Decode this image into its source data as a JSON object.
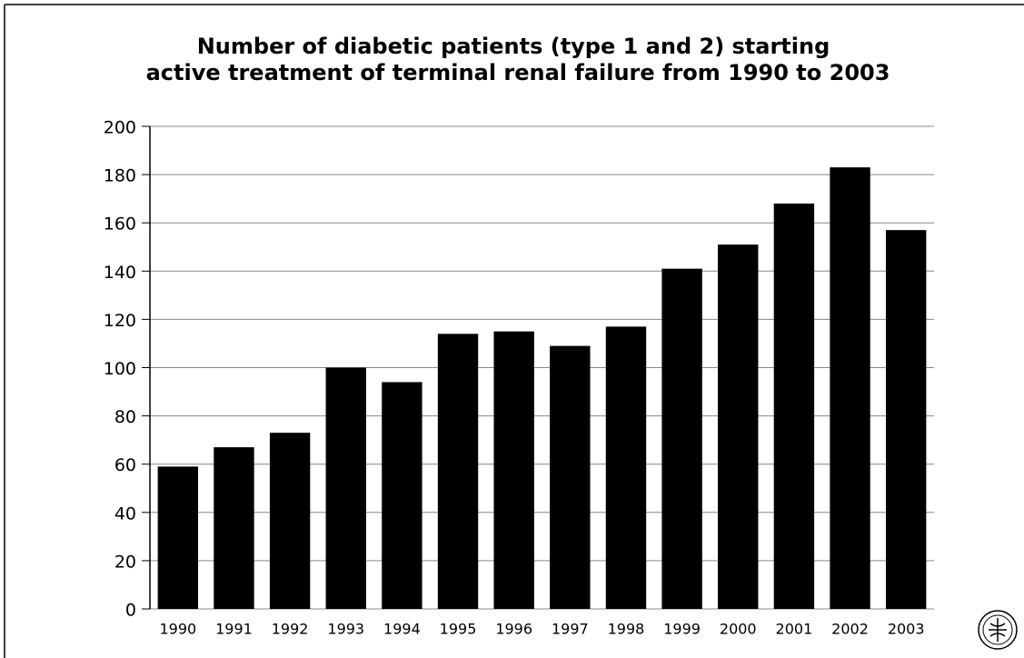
{
  "chart_data": {
    "type": "bar",
    "title": [
      "Number of diabetic patients (type 1 and 2) starting",
      "active treatment of terminal renal failure from 1990 to 2003"
    ],
    "categories": [
      "1990",
      "1991",
      "1992",
      "1993",
      "1994",
      "1995",
      "1996",
      "1997",
      "1998",
      "1999",
      "2000",
      "2001",
      "2002",
      "2003"
    ],
    "values": [
      59,
      67,
      73,
      100,
      94,
      114,
      115,
      109,
      117,
      141,
      151,
      168,
      183,
      157
    ],
    "color": "#000000",
    "ylim": [
      0,
      200
    ],
    "yticks": [
      0,
      20,
      40,
      60,
      80,
      100,
      120,
      140,
      160,
      180,
      200
    ],
    "grid": true
  }
}
